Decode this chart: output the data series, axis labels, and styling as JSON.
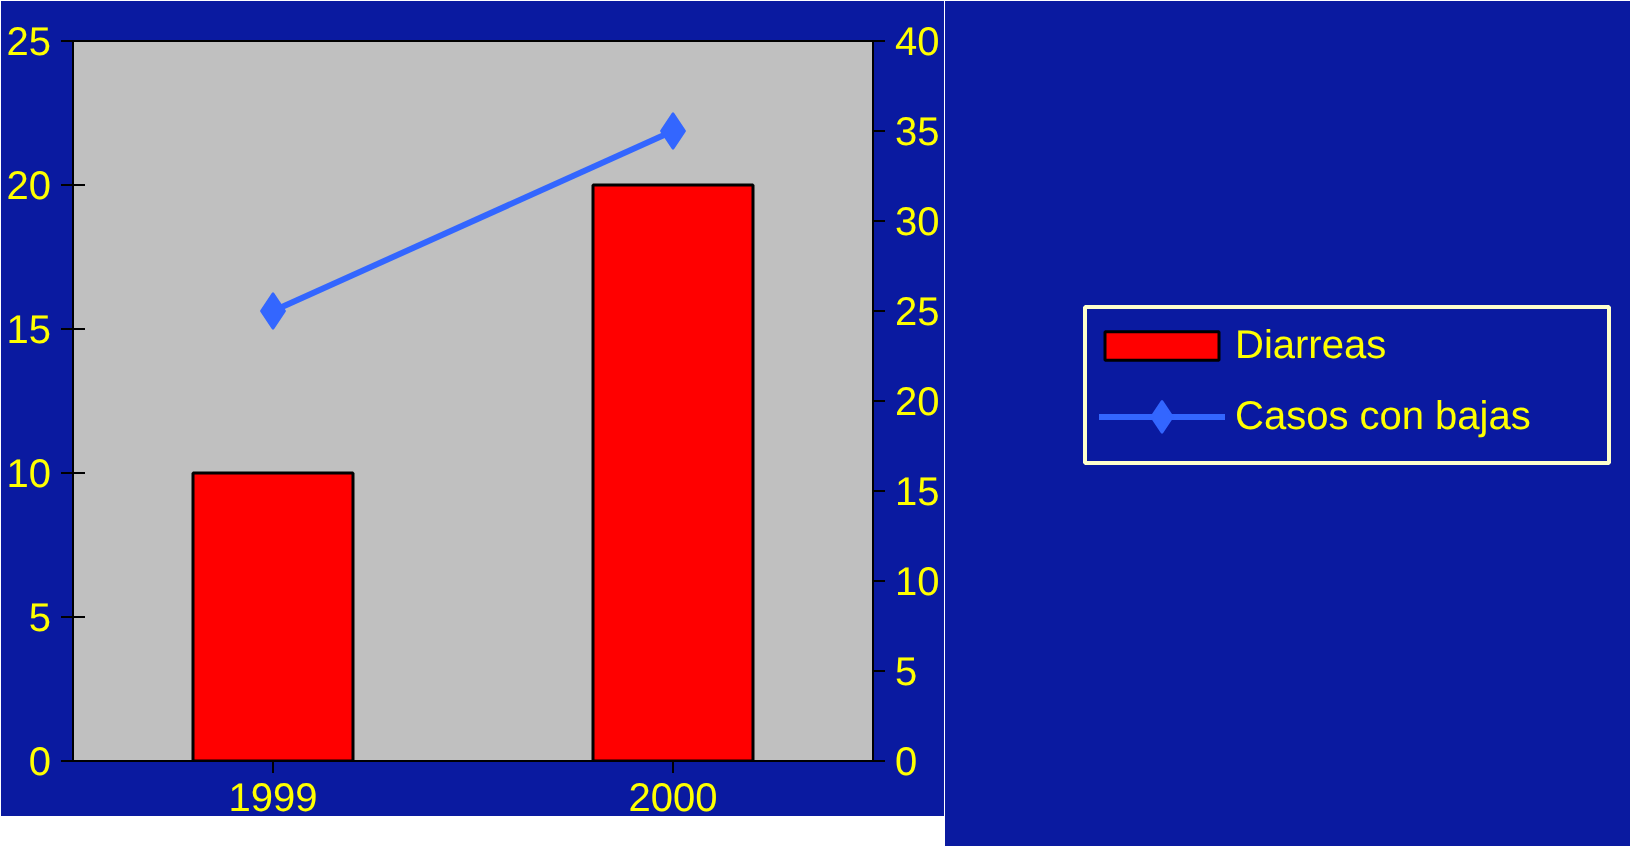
{
  "chart_data": {
    "type": "bar",
    "categories": [
      "1999",
      "2000"
    ],
    "series": [
      {
        "name": "Diarreas",
        "color": "#ff0000",
        "values": [
          10,
          20
        ]
      },
      {
        "name": "Casos con bajas",
        "type": "line",
        "axis": "y2",
        "color": "#3366ff",
        "marker": "diamond",
        "values": [
          25,
          35
        ]
      }
    ],
    "ylim": [
      0,
      25
    ],
    "yticks": [
      0,
      5,
      10,
      15,
      20,
      25
    ],
    "y2lim": [
      0,
      40
    ],
    "y2ticks": [
      0,
      5,
      10,
      15,
      20,
      25,
      30,
      35,
      40
    ],
    "grid": false,
    "legend": "right"
  }
}
